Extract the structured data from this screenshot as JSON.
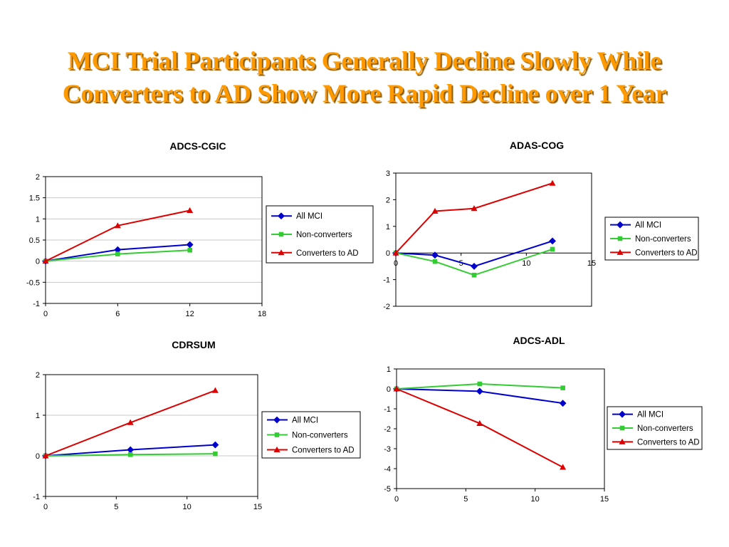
{
  "slide": {
    "title_line1": "MCI Trial Participants Generally Decline Slowly While",
    "title_line2": "Converters to AD Show More Rapid Decline over 1 Year"
  },
  "colors": {
    "title": "#ff9900",
    "all_mci": "#0000cc",
    "non_converters": "#33cc33",
    "converters": "#dd0000"
  },
  "chart_data": [
    {
      "id": "adcs-cgic",
      "type": "line",
      "title": "ADCS-CGIC",
      "xlabel": "",
      "ylabel": "",
      "xlim": [
        0,
        18
      ],
      "ylim": [
        -1,
        2
      ],
      "xticks": [
        0,
        6,
        12,
        18
      ],
      "yticks": [
        -1,
        -0.5,
        0,
        0.5,
        1,
        1.5,
        2
      ],
      "xtick_labels": [
        "0",
        "6",
        "12",
        "18"
      ],
      "ytick_labels": [
        "-1",
        "-0.5",
        "0",
        "0.5",
        "1",
        "1.5",
        "2"
      ],
      "grid": true,
      "legend": "right",
      "series": [
        {
          "name": "All MCI",
          "marker": "diamond",
          "color": "#0000cc",
          "x": [
            0,
            6,
            12
          ],
          "y": [
            0,
            0.27,
            0.39
          ]
        },
        {
          "name": "Non-converters",
          "marker": "square",
          "color": "#33cc33",
          "x": [
            0,
            6,
            12
          ],
          "y": [
            0,
            0.17,
            0.26
          ]
        },
        {
          "name": "Converters to AD",
          "marker": "triangle",
          "color": "#dd0000",
          "x": [
            0,
            6,
            12
          ],
          "y": [
            0,
            0.84,
            1.2
          ]
        }
      ]
    },
    {
      "id": "adas-cog",
      "type": "line",
      "title": "ADAS-COG",
      "xlabel": "",
      "ylabel": "",
      "xlim": [
        0,
        15
      ],
      "ylim": [
        -2,
        3
      ],
      "xticks": [
        0,
        5,
        10,
        15
      ],
      "yticks": [
        -2,
        -1,
        0,
        1,
        2,
        3
      ],
      "xtick_labels": [
        "0",
        "5",
        "10",
        "15"
      ],
      "ytick_labels": [
        "-2",
        "-1",
        "0",
        "1",
        "2",
        "3"
      ],
      "grid": false,
      "legend": "right",
      "series": [
        {
          "name": "All MCI",
          "marker": "diamond",
          "color": "#0000cc",
          "x": [
            0,
            3,
            6,
            12
          ],
          "y": [
            0,
            -0.08,
            -0.5,
            0.45
          ]
        },
        {
          "name": "Non-converters",
          "marker": "square",
          "color": "#33cc33",
          "x": [
            0,
            3,
            6,
            12
          ],
          "y": [
            0,
            -0.32,
            -0.83,
            0.14
          ]
        },
        {
          "name": "Converters to AD",
          "marker": "triangle",
          "color": "#dd0000",
          "x": [
            0,
            3,
            6,
            12
          ],
          "y": [
            0,
            1.57,
            1.67,
            2.62
          ]
        }
      ]
    },
    {
      "id": "cdrsum",
      "type": "line",
      "title": "CDRSUM",
      "xlabel": "",
      "ylabel": "",
      "xlim": [
        0,
        15
      ],
      "ylim": [
        -1,
        2
      ],
      "xticks": [
        0,
        5,
        10,
        15
      ],
      "yticks": [
        -1,
        0,
        1,
        2
      ],
      "xtick_labels": [
        "0",
        "5",
        "10",
        "15"
      ],
      "ytick_labels": [
        "-1",
        "0",
        "1",
        "2"
      ],
      "grid": true,
      "legend": "right",
      "series": [
        {
          "name": "All MCI",
          "marker": "diamond",
          "color": "#0000cc",
          "x": [
            0,
            6,
            12
          ],
          "y": [
            0,
            0.15,
            0.27
          ]
        },
        {
          "name": "Non-converters",
          "marker": "square",
          "color": "#33cc33",
          "x": [
            0,
            6,
            12
          ],
          "y": [
            0,
            0.03,
            0.05
          ]
        },
        {
          "name": "Converters to AD",
          "marker": "triangle",
          "color": "#dd0000",
          "x": [
            0,
            6,
            12
          ],
          "y": [
            0,
            0.82,
            1.61
          ]
        }
      ]
    },
    {
      "id": "adcs-adl",
      "type": "line",
      "title": "ADCS-ADL",
      "xlabel": "",
      "ylabel": "",
      "xlim": [
        0,
        15
      ],
      "ylim": [
        -5,
        1
      ],
      "xticks": [
        0,
        5,
        10,
        15
      ],
      "yticks": [
        -5,
        -4,
        -3,
        -2,
        -1,
        0,
        1
      ],
      "xtick_labels": [
        "0",
        "5",
        "10",
        "15"
      ],
      "ytick_labels": [
        "-5",
        "-4",
        "-3",
        "-2",
        "-1",
        "0",
        "1"
      ],
      "grid": false,
      "legend": "right",
      "series": [
        {
          "name": "All MCI",
          "marker": "diamond",
          "color": "#0000cc",
          "x": [
            0,
            6,
            12
          ],
          "y": [
            0,
            -0.12,
            -0.72
          ]
        },
        {
          "name": "Non-converters",
          "marker": "square",
          "color": "#33cc33",
          "x": [
            0,
            6,
            12
          ],
          "y": [
            0,
            0.25,
            0.05
          ]
        },
        {
          "name": "Converters to AD",
          "marker": "triangle",
          "color": "#dd0000",
          "x": [
            0,
            6,
            12
          ],
          "y": [
            0,
            -1.73,
            -3.93
          ]
        }
      ]
    }
  ]
}
